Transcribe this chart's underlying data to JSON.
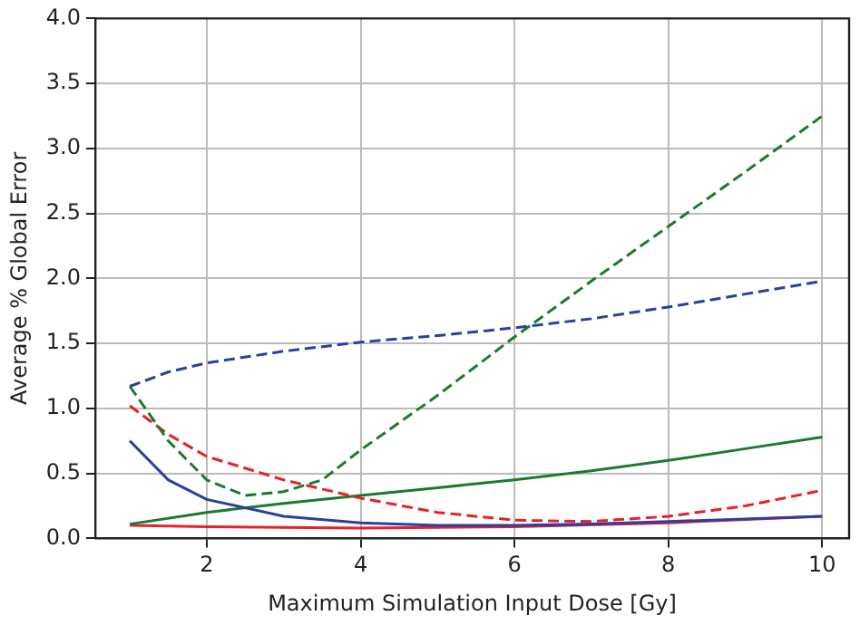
{
  "chart_data": {
    "type": "line",
    "xlabel": "Maximum Simulation Input Dose [Gy]",
    "ylabel": "Average % Global Error",
    "xlim": [
      0.55,
      10.35
    ],
    "xticks": [
      2,
      4,
      6,
      8,
      10
    ],
    "ylim": [
      0,
      4.0
    ],
    "yticks": [
      {
        "value": 0,
        "label": "0.0"
      },
      {
        "value": 0.5,
        "label": "0.5"
      },
      {
        "value": 1,
        "label": "1.0"
      },
      {
        "value": 1.5,
        "label": "1.5"
      },
      {
        "value": 2,
        "label": "2.0"
      },
      {
        "value": 2.5,
        "label": "2.5"
      },
      {
        "value": 3,
        "label": "3.0"
      },
      {
        "value": 3.5,
        "label": "3.5"
      },
      {
        "value": 4,
        "label": "4.0"
      }
    ],
    "grid": true,
    "marker": "none",
    "series": [
      {
        "color": "#2b3f9e",
        "line_style": "dashed",
        "x": [
          1,
          1.5,
          2,
          3,
          4,
          5,
          6,
          7,
          8,
          9,
          10
        ],
        "values": [
          1.17,
          1.28,
          1.35,
          1.44,
          1.51,
          1.56,
          1.62,
          1.69,
          1.78,
          1.88,
          1.98
        ]
      },
      {
        "color": "#1b7a2e",
        "line_style": "dashed",
        "x": [
          1,
          1.5,
          2,
          2.5,
          3,
          3.5,
          4,
          5,
          6,
          7,
          8,
          9,
          10
        ],
        "values": [
          1.17,
          0.75,
          0.45,
          0.33,
          0.36,
          0.45,
          0.68,
          1.1,
          1.55,
          1.98,
          2.4,
          2.82,
          3.25
        ]
      },
      {
        "color": "#e8202a",
        "line_style": "dashed",
        "x": [
          1,
          1.5,
          2,
          3,
          4,
          5,
          6,
          7,
          8,
          9,
          10
        ],
        "values": [
          1.02,
          0.8,
          0.63,
          0.45,
          0.31,
          0.2,
          0.14,
          0.13,
          0.17,
          0.25,
          0.37
        ]
      },
      {
        "color": "#2b3f9e",
        "line_style": "solid",
        "x": [
          1,
          1.5,
          2,
          3,
          4,
          5,
          6,
          7,
          8,
          9,
          10
        ],
        "values": [
          0.75,
          0.45,
          0.3,
          0.17,
          0.12,
          0.1,
          0.1,
          0.11,
          0.13,
          0.15,
          0.17
        ]
      },
      {
        "color": "#1b7a2e",
        "line_style": "solid",
        "x": [
          1,
          2,
          3,
          4,
          5,
          6,
          7,
          8,
          9,
          10
        ],
        "values": [
          0.11,
          0.2,
          0.27,
          0.33,
          0.39,
          0.45,
          0.52,
          0.6,
          0.69,
          0.78
        ]
      },
      {
        "color": "#e8202a",
        "line_style": "solid",
        "x": [
          1,
          2,
          4,
          6,
          8,
          10
        ],
        "values": [
          0.1,
          0.09,
          0.08,
          0.09,
          0.12,
          0.17
        ]
      }
    ]
  }
}
